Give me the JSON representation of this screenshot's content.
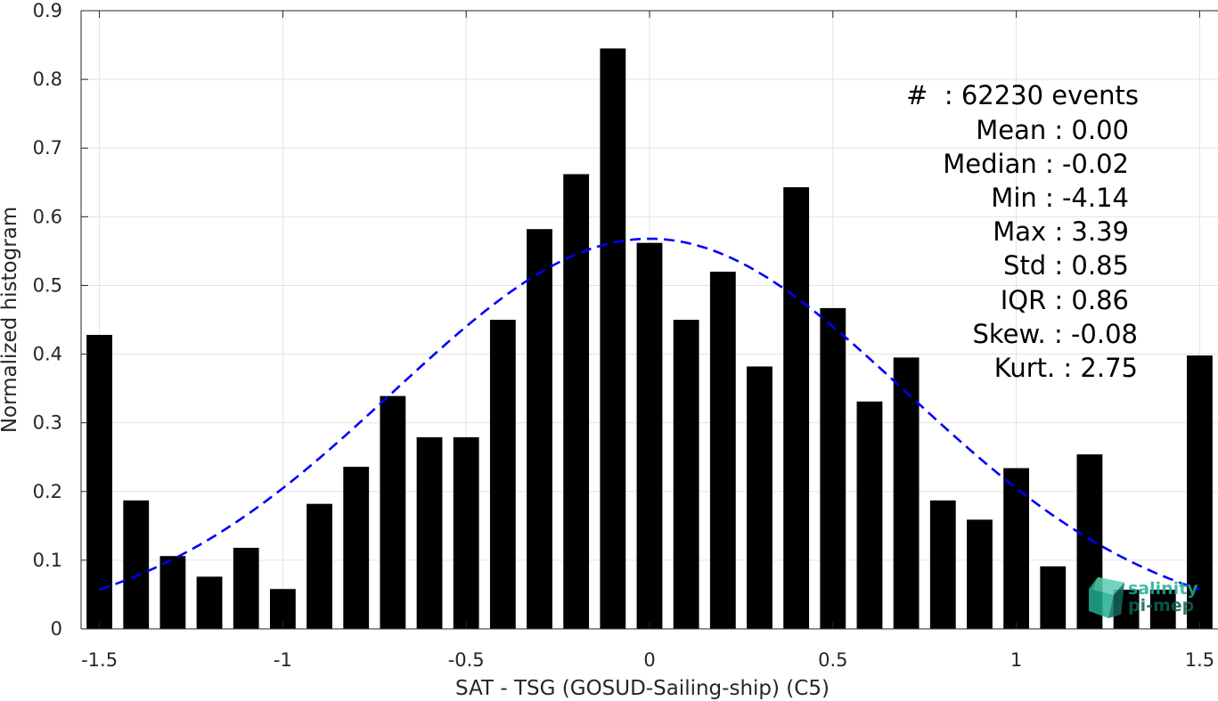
{
  "chart_data": {
    "type": "bar",
    "title": "",
    "xlabel": "SAT - TSG (GOSUD-Sailing-ship) (C5)",
    "ylabel": "Normalized histogram",
    "xlim": [
      -1.55,
      1.55
    ],
    "ylim": [
      0,
      0.9
    ],
    "grid": true,
    "x_ticks": [
      -1.5,
      -1,
      -0.5,
      0,
      0.5,
      1,
      1.5
    ],
    "x_tick_labels": [
      "-1.5",
      "-1",
      "-0.5",
      "0",
      "0.5",
      "1",
      "1.5"
    ],
    "y_ticks": [
      0,
      0.1,
      0.2,
      0.3,
      0.4,
      0.5,
      0.6,
      0.7,
      0.8,
      0.9
    ],
    "y_tick_labels": [
      "0",
      "0.1",
      "0.2",
      "0.3",
      "0.4",
      "0.5",
      "0.6",
      "0.7",
      "0.8",
      "0.9"
    ],
    "bar_width": 0.07,
    "x": [
      -1.5,
      -1.4,
      -1.3,
      -1.2,
      -1.1,
      -1.0,
      -0.9,
      -0.8,
      -0.7,
      -0.6,
      -0.5,
      -0.4,
      -0.3,
      -0.2,
      -0.1,
      0.0,
      0.1,
      0.2,
      0.3,
      0.4,
      0.5,
      0.6,
      0.7,
      0.8,
      0.9,
      1.0,
      1.1,
      1.2,
      1.3,
      1.4,
      1.5
    ],
    "values": [
      0.428,
      0.187,
      0.106,
      0.076,
      0.118,
      0.058,
      0.182,
      0.236,
      0.339,
      0.279,
      0.279,
      0.45,
      0.582,
      0.662,
      0.845,
      0.562,
      0.45,
      0.52,
      0.382,
      0.643,
      0.467,
      0.331,
      0.395,
      0.187,
      0.159,
      0.234,
      0.091,
      0.254,
      0.057,
      0.057,
      0.398
    ],
    "fit": {
      "label": "Gaussian fit",
      "mean": 0.0,
      "std": 0.7,
      "peak": 0.568,
      "x_range": [
        -1.5,
        1.5
      ],
      "color": "#0000ff",
      "style": "dashed"
    },
    "bar_color": "#000000",
    "annotation": {
      "lines": [
        "#  : 62230 events",
        "Mean : 0.00",
        "Median : -0.02",
        "Min : -4.14",
        "Max : 3.39",
        "Std : 0.85",
        "IQR : 0.86",
        "Skew. : -0.08",
        "Kurt. : 2.75"
      ]
    }
  },
  "logo": {
    "line1": "salinity",
    "line2": "pi-mep",
    "color": "#1fae8f",
    "dark_color": "#0f5f56"
  }
}
